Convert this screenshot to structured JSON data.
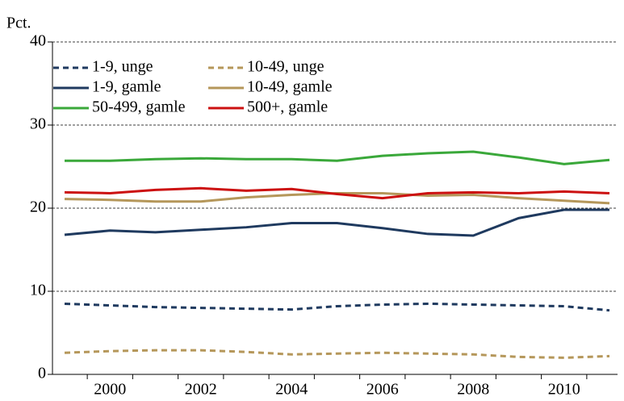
{
  "chart_data": {
    "type": "line",
    "y_label": "Pct.",
    "categories": [
      null,
      "2000",
      null,
      "2002",
      null,
      "2004",
      null,
      "2006",
      null,
      "2008",
      null,
      "2010",
      null
    ],
    "ylim": [
      0,
      40
    ],
    "yticks": [
      0,
      10,
      20,
      30,
      40
    ],
    "grid": true,
    "legend": "upper-left",
    "series": [
      {
        "name": "1-9, unge",
        "color": "#1f3a5f",
        "dashed": true,
        "values": [
          8.5,
          8.3,
          8.1,
          8.0,
          7.9,
          7.8,
          8.2,
          8.4,
          8.5,
          8.4,
          8.3,
          8.2,
          7.7
        ]
      },
      {
        "name": "10-49, unge",
        "color": "#b5975a",
        "dashed": true,
        "values": [
          2.6,
          2.8,
          2.9,
          2.9,
          2.7,
          2.4,
          2.5,
          2.6,
          2.5,
          2.4,
          2.1,
          2.0,
          2.2
        ]
      },
      {
        "name": "1-9, gamle",
        "color": "#1f3a5f",
        "dashed": false,
        "values": [
          16.8,
          17.3,
          17.1,
          17.4,
          17.7,
          18.2,
          18.2,
          17.6,
          16.9,
          16.7,
          18.8,
          19.8,
          19.8
        ]
      },
      {
        "name": "10-49, gamle",
        "color": "#b5975a",
        "dashed": false,
        "values": [
          21.1,
          21.0,
          20.8,
          20.8,
          21.3,
          21.6,
          21.8,
          21.8,
          21.5,
          21.6,
          21.2,
          20.9,
          20.6
        ]
      },
      {
        "name": "50-499, gamle",
        "color": "#3aa83a",
        "dashed": false,
        "values": [
          25.7,
          25.7,
          25.9,
          26.0,
          25.9,
          25.9,
          25.7,
          26.3,
          26.6,
          26.8,
          26.1,
          25.3,
          25.8
        ]
      },
      {
        "name": "500+, gamle",
        "color": "#cc1111",
        "dashed": false,
        "values": [
          21.9,
          21.8,
          22.2,
          22.4,
          22.1,
          22.3,
          21.7,
          21.2,
          21.8,
          21.9,
          21.8,
          22.0,
          21.8
        ]
      }
    ]
  }
}
